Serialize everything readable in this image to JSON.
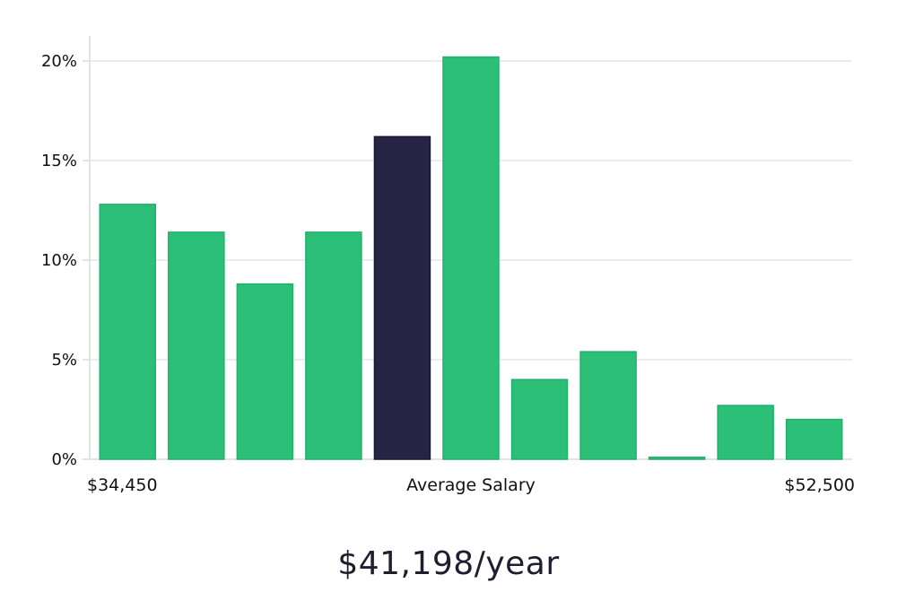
{
  "chart_data": {
    "type": "bar",
    "categories": [
      "1",
      "2",
      "3",
      "4",
      "5",
      "6",
      "7",
      "8",
      "9",
      "10",
      "11"
    ],
    "values": [
      12.8,
      11.4,
      8.8,
      11.4,
      16.2,
      20.2,
      4.0,
      5.4,
      0.1,
      2.7,
      2.0
    ],
    "highlight_index": 4,
    "ylim": [
      0,
      21
    ],
    "yticks": [
      0,
      5,
      10,
      15,
      20
    ],
    "ytick_labels": [
      "0%",
      "5%",
      "10%",
      "15%",
      "20%"
    ],
    "xlabel": "Average Salary",
    "x_min_label": "$34,450",
    "x_max_label": "$52,500",
    "grid": true,
    "bar_color": "#2bbf78",
    "highlight_color": "#272446",
    "grid_color": "#e4e6ea",
    "axis_color": "#dcdcdc"
  },
  "summary": {
    "salary_text": "$41,198/year"
  }
}
